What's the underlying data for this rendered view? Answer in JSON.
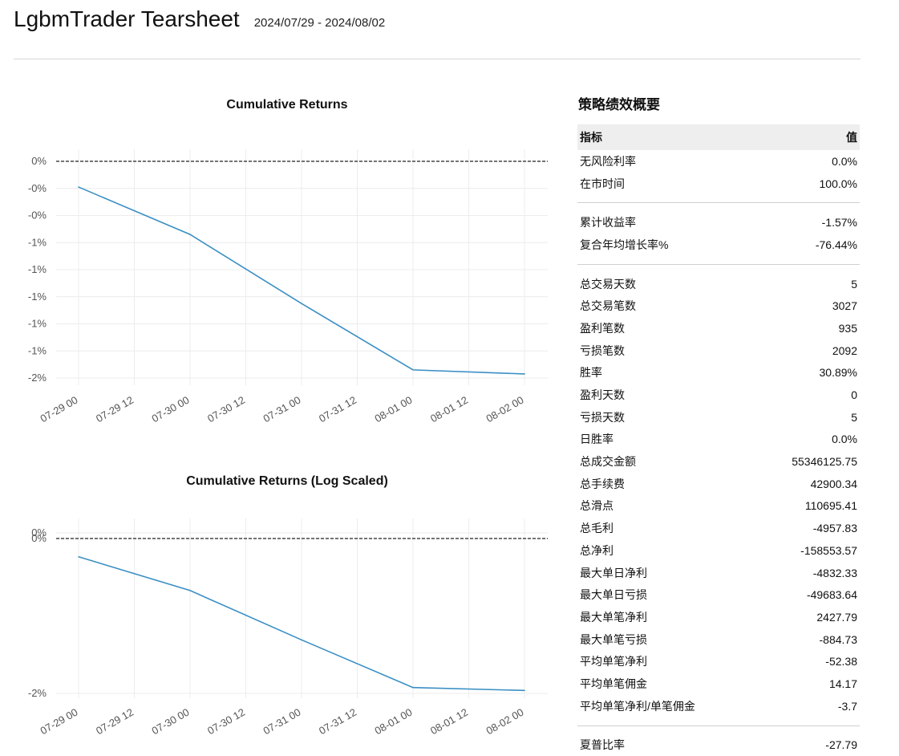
{
  "header": {
    "title": "LgbmTrader Tearsheet",
    "date_range": "2024/07/29 - 2024/08/02"
  },
  "chart_data": [
    {
      "type": "line",
      "title": "Cumulative Returns",
      "x": [
        "07-29 00",
        "07-30 00",
        "07-31 00",
        "08-01 00",
        "08-02 00"
      ],
      "x_ticks": [
        "07-29 00",
        "07-29 12",
        "07-30 00",
        "07-30 12",
        "07-31 00",
        "07-31 12",
        "08-01 00",
        "08-01 12",
        "08-02 00"
      ],
      "y": [
        -0.19,
        -0.54,
        -1.05,
        -1.54,
        -1.57
      ],
      "y_ticks": [
        "0%",
        "-0%",
        "-0%",
        "-1%",
        "-1%",
        "-1%",
        "-1%",
        "-1%",
        "-2%"
      ],
      "ylim": [
        -1.6,
        0.0
      ],
      "baseline": 0,
      "grid": true,
      "color": "#3a8fc4"
    },
    {
      "type": "line",
      "title": "Cumulative Returns (Log Scaled)",
      "x": [
        "07-29 00",
        "07-30 00",
        "07-31 00",
        "08-01 00",
        "08-02 00"
      ],
      "x_ticks": [
        "07-29 00",
        "07-29 12",
        "07-30 00",
        "07-30 12",
        "07-31 00",
        "07-31 12",
        "08-01 00",
        "08-01 12",
        "08-02 00"
      ],
      "y": [
        -0.19,
        -0.54,
        -1.05,
        -1.54,
        -1.57
      ],
      "y_ticks": [
        "0%",
        "0%",
        "-2%"
      ],
      "grid": true,
      "color": "#3a8fc4"
    }
  ],
  "stats": {
    "title": "策略绩效概要",
    "header": {
      "metric": "指标",
      "value": "值"
    },
    "groups": [
      [
        {
          "label": "无风险利率",
          "value": "0.0%"
        },
        {
          "label": "在市时间",
          "value": "100.0%"
        }
      ],
      [
        {
          "label": "累计收益率",
          "value": "-1.57%"
        },
        {
          "label": "复合年均增长率%",
          "value": "-76.44%"
        }
      ],
      [
        {
          "label": "总交易天数",
          "value": "5"
        },
        {
          "label": "总交易笔数",
          "value": "3027"
        },
        {
          "label": "盈利笔数",
          "value": "935"
        },
        {
          "label": "亏损笔数",
          "value": "2092"
        },
        {
          "label": "胜率",
          "value": "30.89%"
        },
        {
          "label": "盈利天数",
          "value": "0"
        },
        {
          "label": "亏损天数",
          "value": "5"
        },
        {
          "label": "日胜率",
          "value": "0.0%"
        },
        {
          "label": "总成交金额",
          "value": "55346125.75"
        },
        {
          "label": "总手续费",
          "value": "42900.34"
        },
        {
          "label": "总滑点",
          "value": "110695.41"
        },
        {
          "label": "总毛利",
          "value": "-4957.83"
        },
        {
          "label": "总净利",
          "value": "-158553.57"
        },
        {
          "label": "最大单日净利",
          "value": "-4832.33"
        },
        {
          "label": "最大单日亏损",
          "value": "-49683.64"
        },
        {
          "label": "最大单笔净利",
          "value": "2427.79"
        },
        {
          "label": "最大单笔亏损",
          "value": "-884.73"
        },
        {
          "label": "平均单笔净利",
          "value": "-52.38"
        },
        {
          "label": "平均单笔佣金",
          "value": "14.17"
        },
        {
          "label": "平均单笔净利/单笔佣金",
          "value": "-3.7"
        }
      ],
      [
        {
          "label": "夏普比率",
          "value": "-27.79"
        }
      ]
    ]
  }
}
